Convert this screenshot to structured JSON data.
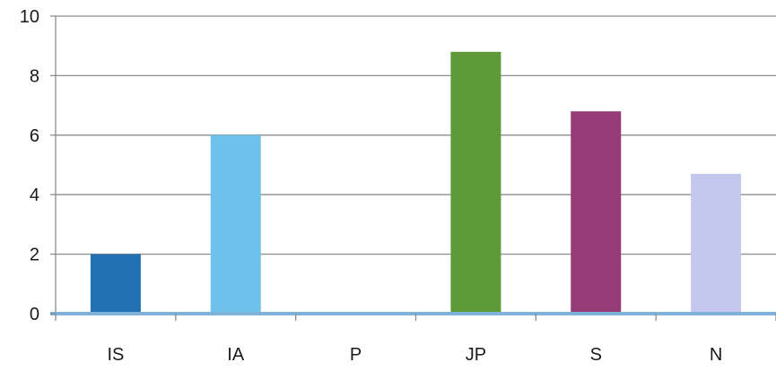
{
  "chart_data": {
    "type": "bar",
    "categories": [
      "IS",
      "IA",
      "P",
      "JP",
      "S",
      "N"
    ],
    "values": [
      2,
      6,
      0,
      8.8,
      6.8,
      4.7
    ],
    "colors": [
      "#2272b3",
      "#6ec1ea",
      "#cccccc",
      "#5e9a38",
      "#953c78",
      "#c5c8ee"
    ],
    "ylim": [
      0,
      10
    ],
    "yticks": [
      "0",
      "2",
      "4",
      "6",
      "8",
      "10"
    ],
    "grid": true,
    "axis_color": "#7fb2d9",
    "grid_color": "#8c8c8c"
  }
}
